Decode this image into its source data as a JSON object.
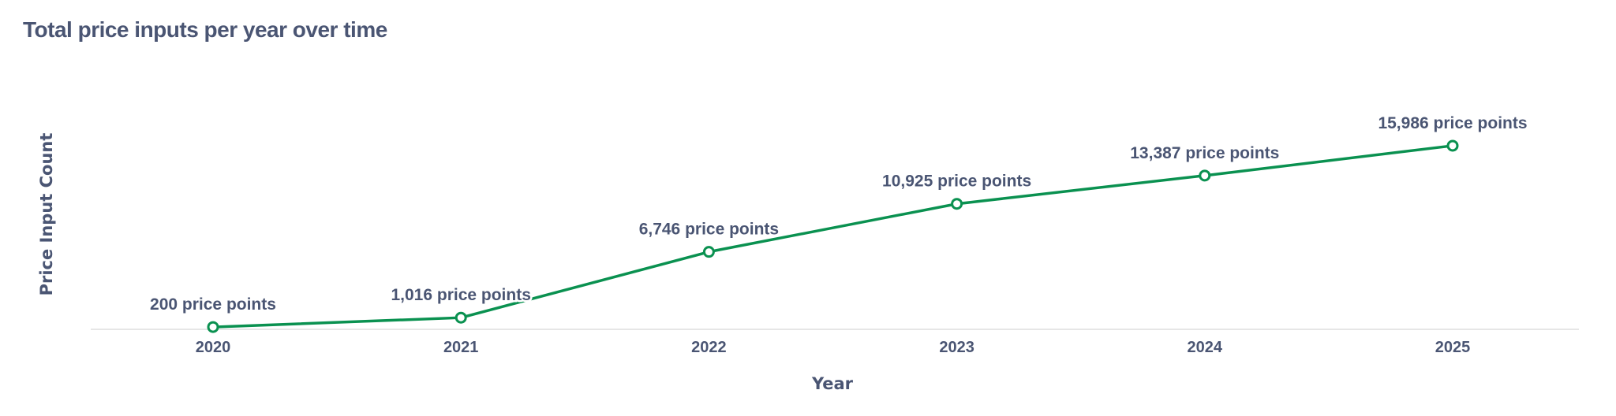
{
  "chart_data": {
    "type": "line",
    "title": "Total price inputs per year over time",
    "xlabel": "Year",
    "ylabel": "Price Input Count",
    "categories": [
      "2020",
      "2021",
      "2022",
      "2023",
      "2024",
      "2025"
    ],
    "values": [
      200,
      1016,
      6746,
      10925,
      13387,
      15986
    ],
    "data_labels": [
      "200 price points",
      "1,016 price points",
      "6,746 price points",
      "10,925 price points",
      "13,387 price points",
      "15,986 price points"
    ],
    "ylim": [
      0,
      19000
    ],
    "y_ticks_shown": false,
    "grid": false,
    "legend": "none",
    "line_color": "#0a9150",
    "text_color": "#4a5573"
  }
}
